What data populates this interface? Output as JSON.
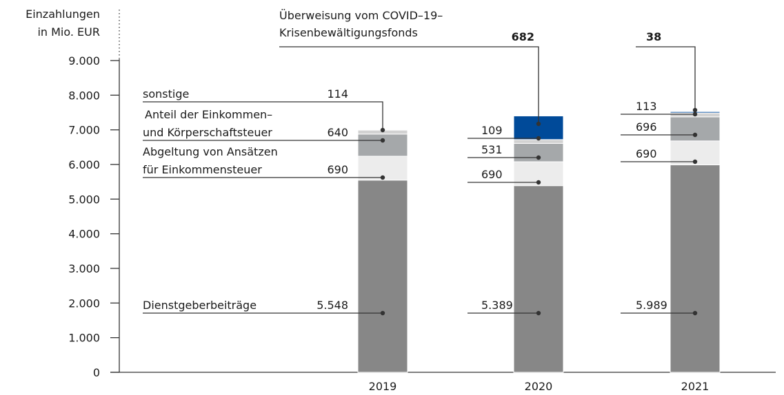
{
  "chart_data": {
    "type": "stacked_bar",
    "ylabel": [
      "Einzahlungen",
      "in Mio. EUR"
    ],
    "categories": [
      "2019",
      "2020",
      "2021"
    ],
    "series": [
      {
        "name": [
          "Dienstgeberbeiträge"
        ],
        "color": "#878787",
        "values": [
          5548,
          5389,
          5989
        ],
        "value_labels": [
          "5.548",
          "5.389",
          "5.989"
        ]
      },
      {
        "name": [
          "Abgeltung von Ansätzen",
          "für Einkommensteuer"
        ],
        "color": "#ececec",
        "values": [
          690,
          690,
          690
        ]
      },
      {
        "name": [
          "Anteil der Einkommen–",
          "und Körperschaftsteuer"
        ],
        "color": "#a5a8aa",
        "values": [
          640,
          531,
          696
        ]
      },
      {
        "name": [
          "sonstige"
        ],
        "color": "#d2d2d2",
        "values": [
          114,
          109,
          113
        ]
      },
      {
        "name": [
          "Überweisung vom COVID–19–",
          "Krisenbewältigungsfonds"
        ],
        "color": "#004a99",
        "values": [
          null,
          682,
          38
        ]
      }
    ],
    "ylim": [
      0,
      9000
    ],
    "yticks": [
      0,
      {
        "value": 1000,
        "label": "1.000"
      },
      {
        "value": 2000,
        "label": "2.000"
      },
      {
        "value": 3000,
        "label": "3.000"
      },
      {
        "value": 4000,
        "label": "4.000"
      },
      {
        "value": 5000,
        "label": "5.000"
      },
      {
        "value": 6000,
        "label": "6.000"
      },
      {
        "value": 7000,
        "label": "7.000"
      },
      {
        "value": 8000,
        "label": "8.000"
      },
      {
        "value": 9000,
        "label": "9.000"
      }
    ]
  }
}
